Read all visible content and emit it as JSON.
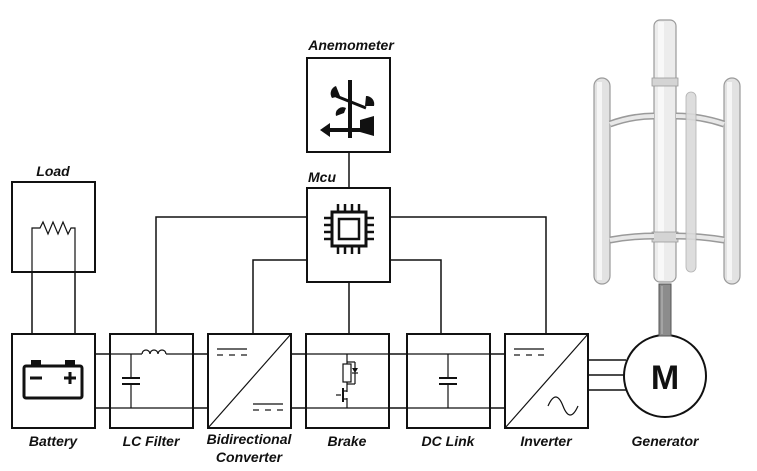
{
  "title_labels": {
    "anemometer": "Anemometer",
    "load": "Load",
    "mcu": "Mcu",
    "battery": "Battery",
    "lc_filter": "LC Filter",
    "bidirectional_line1": "Bidirectional",
    "bidirectional_line2": "Converter",
    "brake": "Brake",
    "dc_link": "DC Link",
    "inverter": "Inverter",
    "generator": "Generator",
    "motor_letter": "M"
  },
  "icons": {
    "anemometer": "anemometer-icon",
    "mcu": "microchip-icon",
    "load": "resistor-icon",
    "battery": "battery-icon",
    "lc_filter": "lc-filter-icon",
    "converter": "dc-dc-converter-icon",
    "brake": "brake-chopper-icon",
    "dc_link": "capacitor-icon",
    "inverter": "dc-ac-inverter-icon",
    "turbine": "vertical-axis-wind-turbine-icon"
  },
  "colors": {
    "stroke": "#111111",
    "turbine_body": "#e6e6e6"
  }
}
